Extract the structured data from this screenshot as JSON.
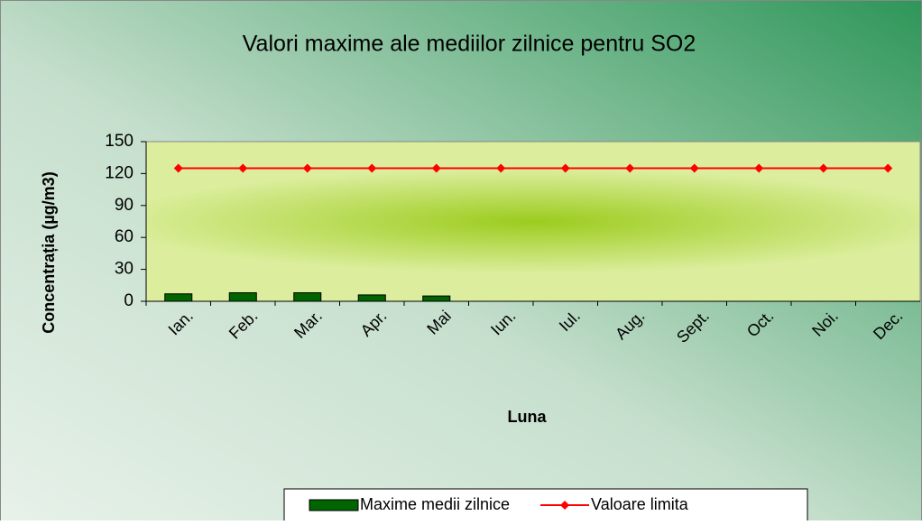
{
  "chart_data": {
    "type": "bar",
    "title": "Valori maxime ale mediilor zilnice pentru SO2",
    "xlabel": "Luna",
    "ylabel": "Concentrația (µg/m3)",
    "categories": [
      "Ian.",
      "Feb.",
      "Mar.",
      "Apr.",
      "Mai",
      "Iun.",
      "Iul.",
      "Aug.",
      "Sept.",
      "Oct.",
      "Noi.",
      "Dec."
    ],
    "series": [
      {
        "name": "Maxime medii zilnice",
        "type": "bar",
        "color": "#006400",
        "values": [
          7,
          8,
          8,
          6,
          5,
          null,
          null,
          null,
          null,
          null,
          null,
          null
        ]
      },
      {
        "name": "Valoare limita",
        "type": "line",
        "color": "#ff0000",
        "values": [
          125,
          125,
          125,
          125,
          125,
          125,
          125,
          125,
          125,
          125,
          125,
          125
        ]
      }
    ],
    "ylim": [
      0,
      150
    ],
    "yticks": [
      0,
      30,
      60,
      90,
      120,
      150
    ],
    "grid": false,
    "legend": "bottom"
  }
}
